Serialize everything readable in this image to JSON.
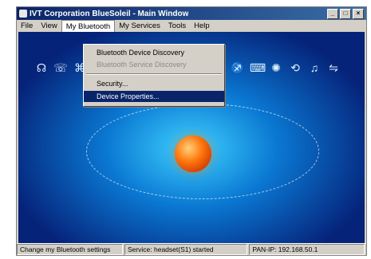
{
  "window": {
    "title": "IVT Corporation BlueSoleil - Main Window",
    "buttons": [
      "_",
      "□",
      "×"
    ]
  },
  "menubar": {
    "items": [
      "File",
      "View",
      "My Bluetooth",
      "My Services",
      "Tools",
      "Help"
    ]
  },
  "dropdown": {
    "items": [
      {
        "label": "Bluetooth Device Discovery",
        "disabled": false
      },
      {
        "label": "Bluetooth Service Discovery",
        "disabled": true
      },
      {
        "label": "Security...",
        "disabled": false
      },
      {
        "label": "Device Properties...",
        "highlight": true
      }
    ]
  },
  "services": {
    "icons": [
      "headset-icon",
      "phone-icon",
      "network-icon",
      "printer-icon",
      "fax-icon",
      "keyboard-icon",
      "wireless-icon",
      "sync-icon",
      "audio-icon",
      "camera-icon",
      "share-icon",
      "transfer-icon"
    ]
  },
  "status": {
    "hint": "Change my Bluetooth settings",
    "service": "Service: headset(S1) started",
    "device": "PAN-IP: 192.168.50.1"
  }
}
